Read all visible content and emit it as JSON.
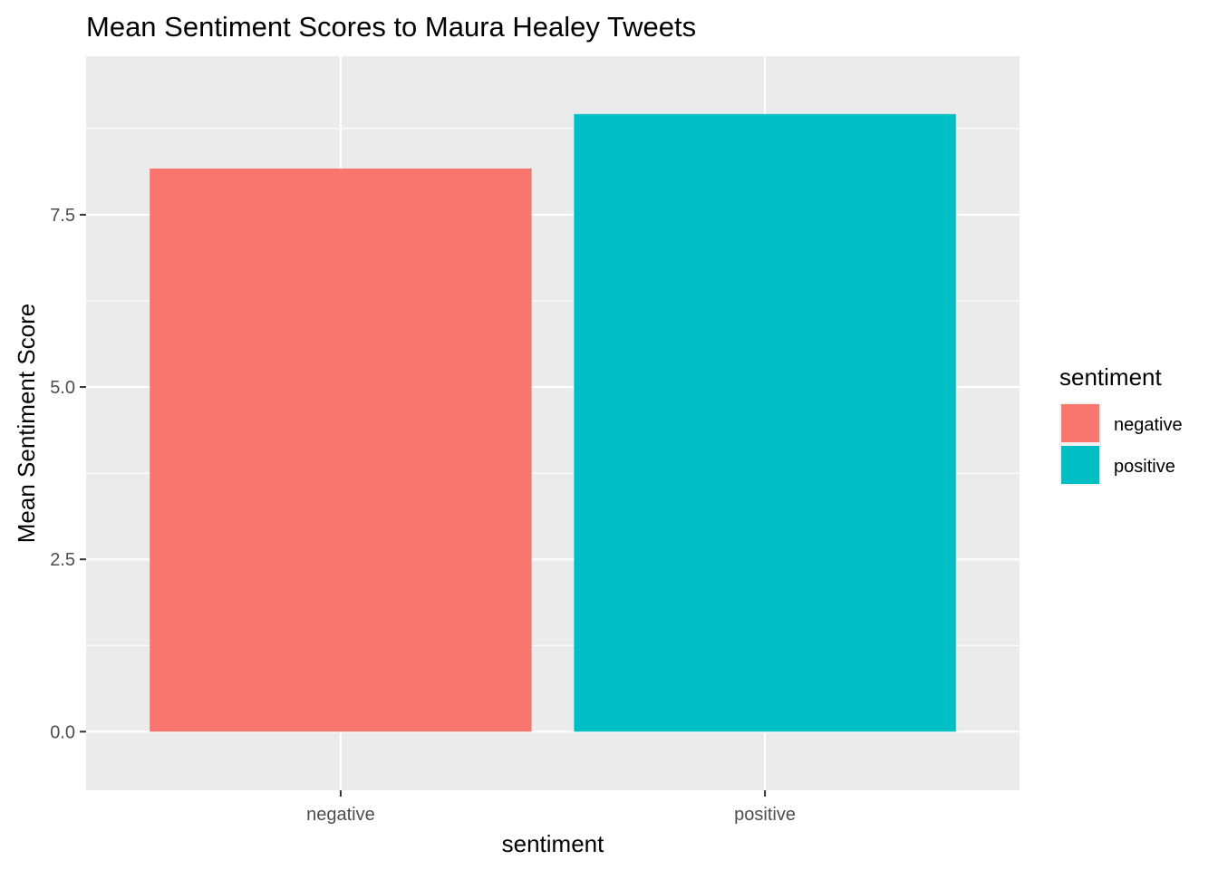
{
  "chart_data": {
    "type": "bar",
    "title": "Mean Sentiment Scores to Maura Healey Tweets",
    "xlabel": "sentiment",
    "ylabel": "Mean Sentiment Score",
    "categories": [
      "negative",
      "positive"
    ],
    "values": [
      8.17,
      8.96
    ],
    "ylim": [
      -0.85,
      9.8
    ],
    "yticks": [
      0.0,
      2.5,
      5.0,
      7.5
    ],
    "ytick_labels": [
      "0.0",
      "2.5",
      "5.0",
      "7.5"
    ],
    "colors": [
      "#F8766D",
      "#00BFC4"
    ],
    "grid": true,
    "panel_background": "#EBEBEB",
    "legend": {
      "title": "sentiment",
      "position": "right",
      "entries": [
        {
          "label": "negative",
          "color": "#F8766D"
        },
        {
          "label": "positive",
          "color": "#00BFC4"
        }
      ]
    }
  }
}
